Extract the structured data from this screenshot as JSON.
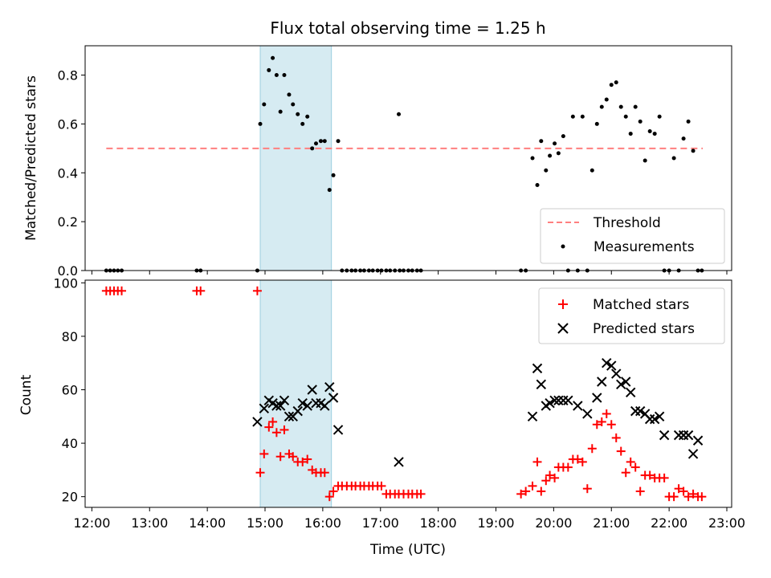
{
  "chart_data": [
    {
      "type": "scatter",
      "title": "Flux total observing time = 1.25 h",
      "xlabel": "",
      "ylabel": "Matched/Predicted stars",
      "xlim": [
        "11:53",
        "23:05"
      ],
      "ylim": [
        0,
        0.92
      ],
      "y_ticks": [
        "0.0",
        "0.2",
        "0.4",
        "0.6",
        "0.8"
      ],
      "grid": false,
      "shaded_region": {
        "x": [
          "14:55",
          "16:09"
        ],
        "color": "#add8e6"
      },
      "legend": {
        "position": "lower-right",
        "entries": [
          "Threshold",
          "Measurements"
        ]
      },
      "colors": {
        "threshold": "#ff7f7f",
        "measurements": "#000000",
        "shade": "#add8e6"
      },
      "series": [
        {
          "name": "Threshold",
          "style": "dashed-line",
          "x": [
            "12:15",
            "22:35"
          ],
          "y": [
            0.5,
            0.5
          ]
        },
        {
          "name": "Measurements",
          "style": "dot",
          "x": [
            "12:15",
            "12:19",
            "12:23",
            "12:27",
            "12:31",
            "13:49",
            "13:53",
            "14:52",
            "14:55",
            "14:59",
            "15:04",
            "15:08",
            "15:12",
            "15:16",
            "15:20",
            "15:25",
            "15:29",
            "15:34",
            "15:39",
            "15:44",
            "15:49",
            "15:53",
            "15:58",
            "16:02",
            "16:07",
            "16:11",
            "16:16",
            "16:20",
            "16:25",
            "16:30",
            "16:34",
            "16:39",
            "16:43",
            "16:48",
            "16:52",
            "16:57",
            "17:01",
            "17:06",
            "17:10",
            "17:15",
            "17:19",
            "17:20",
            "17:24",
            "17:29",
            "17:33",
            "17:38",
            "17:42",
            "19:26",
            "19:31",
            "19:38",
            "19:43",
            "19:47",
            "19:52",
            "19:56",
            "20:01",
            "20:05",
            "20:10",
            "20:15",
            "20:20",
            "20:25",
            "20:30",
            "20:35",
            "20:40",
            "20:45",
            "20:50",
            "20:55",
            "21:00",
            "21:05",
            "21:10",
            "21:15",
            "21:20",
            "21:25",
            "21:30",
            "21:35",
            "21:40",
            "21:45",
            "21:50",
            "21:55",
            "22:00",
            "22:05",
            "22:10",
            "22:15",
            "22:20",
            "22:25",
            "22:30",
            "22:34"
          ],
          "y": [
            0,
            0,
            0,
            0,
            0,
            0,
            0,
            0,
            0.6,
            0.68,
            0.82,
            0.87,
            0.8,
            0.65,
            0.8,
            0.72,
            0.68,
            0.64,
            0.6,
            0.63,
            0.5,
            0.52,
            0.53,
            0.53,
            0.33,
            0.39,
            0.53,
            0,
            0,
            0,
            0,
            0,
            0,
            0,
            0,
            0,
            0,
            0,
            0,
            0,
            0.64,
            0,
            0,
            0,
            0,
            0,
            0,
            0,
            0,
            0.46,
            0.35,
            0.53,
            0.41,
            0.47,
            0.52,
            0.48,
            0.55,
            0,
            0.63,
            0,
            0.63,
            0,
            0.41,
            0.6,
            0.67,
            0.7,
            0.76,
            0.77,
            0.67,
            0.63,
            0.56,
            0.67,
            0.61,
            0.45,
            0.57,
            0.56,
            0.63,
            0,
            0,
            0.46,
            0,
            0.54,
            0.61,
            0.49,
            0,
            0
          ]
        }
      ]
    },
    {
      "type": "scatter",
      "title": "",
      "xlabel": "Time (UTC)",
      "ylabel": "Count",
      "xlim": [
        "11:53",
        "23:05"
      ],
      "ylim": [
        16,
        101
      ],
      "x_ticks": [
        "12:00",
        "13:00",
        "14:00",
        "15:00",
        "16:00",
        "17:00",
        "18:00",
        "19:00",
        "20:00",
        "21:00",
        "22:00",
        "23:00"
      ],
      "y_ticks": [
        "20",
        "40",
        "60",
        "80",
        "100"
      ],
      "grid": false,
      "shaded_region": {
        "x": [
          "14:55",
          "16:09"
        ],
        "color": "#add8e6"
      },
      "legend": {
        "position": "top-right",
        "entries": [
          "Matched stars",
          "Predicted stars"
        ]
      },
      "colors": {
        "matched": "#ff0000",
        "predicted": "#000000",
        "shade": "#add8e6"
      },
      "series": [
        {
          "name": "Matched stars",
          "marker": "plus",
          "x": [
            "12:15",
            "12:19",
            "12:23",
            "12:27",
            "12:31",
            "13:49",
            "13:53",
            "14:52",
            "14:55",
            "14:59",
            "15:04",
            "15:08",
            "15:12",
            "15:16",
            "15:20",
            "15:25",
            "15:29",
            "15:34",
            "15:39",
            "15:44",
            "15:49",
            "15:53",
            "15:58",
            "16:02",
            "16:07",
            "16:11",
            "16:16",
            "16:20",
            "16:25",
            "16:30",
            "16:34",
            "16:39",
            "16:43",
            "16:48",
            "16:52",
            "16:57",
            "17:01",
            "17:06",
            "17:10",
            "17:15",
            "17:19",
            "17:24",
            "17:29",
            "17:33",
            "17:38",
            "17:42",
            "19:26",
            "19:31",
            "19:38",
            "19:43",
            "19:47",
            "19:52",
            "19:56",
            "20:01",
            "20:05",
            "20:10",
            "20:15",
            "20:20",
            "20:25",
            "20:30",
            "20:35",
            "20:40",
            "20:45",
            "20:50",
            "20:55",
            "21:00",
            "21:05",
            "21:10",
            "21:15",
            "21:20",
            "21:25",
            "21:30",
            "21:35",
            "21:40",
            "21:45",
            "21:50",
            "21:55",
            "22:00",
            "22:05",
            "22:10",
            "22:15",
            "22:20",
            "22:25",
            "22:30",
            "22:34"
          ],
          "y": [
            97,
            97,
            97,
            97,
            97,
            97,
            97,
            97,
            29,
            36,
            46,
            48,
            44,
            35,
            45,
            36,
            35,
            33,
            33,
            34,
            30,
            29,
            29,
            29,
            20,
            22,
            24,
            24,
            24,
            24,
            24,
            24,
            24,
            24,
            24,
            24,
            24,
            21,
            21,
            21,
            21,
            21,
            21,
            21,
            21,
            21,
            21,
            22,
            24,
            33,
            22,
            26,
            28,
            27,
            31,
            31,
            31,
            34,
            34,
            33,
            23,
            38,
            47,
            48,
            51,
            47,
            42,
            37,
            29,
            33,
            31,
            22,
            28,
            28,
            27,
            27,
            27,
            20,
            20,
            23,
            22,
            20,
            21,
            20,
            20
          ]
        },
        {
          "name": "Predicted stars",
          "marker": "x",
          "x": [
            "14:52",
            "14:59",
            "15:04",
            "15:08",
            "15:12",
            "15:16",
            "15:20",
            "15:25",
            "15:29",
            "15:34",
            "15:39",
            "15:44",
            "15:49",
            "15:53",
            "15:58",
            "16:02",
            "16:07",
            "16:11",
            "16:16",
            "17:19",
            "19:38",
            "19:43",
            "19:47",
            "19:52",
            "19:56",
            "20:01",
            "20:05",
            "20:10",
            "20:15",
            "20:25",
            "20:35",
            "20:45",
            "20:50",
            "20:55",
            "21:00",
            "21:05",
            "21:10",
            "21:15",
            "21:20",
            "21:25",
            "21:30",
            "21:35",
            "21:40",
            "21:45",
            "21:50",
            "21:55",
            "22:10",
            "22:15",
            "22:20",
            "22:25",
            "22:30"
          ],
          "y": [
            48,
            53,
            56,
            55,
            54,
            54,
            56,
            50,
            50,
            52,
            55,
            54,
            60,
            55,
            55,
            54,
            61,
            57,
            45,
            33,
            50,
            68,
            62,
            54,
            55,
            56,
            56,
            56,
            56,
            54,
            51,
            57,
            63,
            70,
            69,
            66,
            62,
            63,
            59,
            52,
            52,
            51,
            49,
            49,
            50,
            43,
            43,
            43,
            43,
            36,
            41
          ]
        }
      ]
    }
  ]
}
